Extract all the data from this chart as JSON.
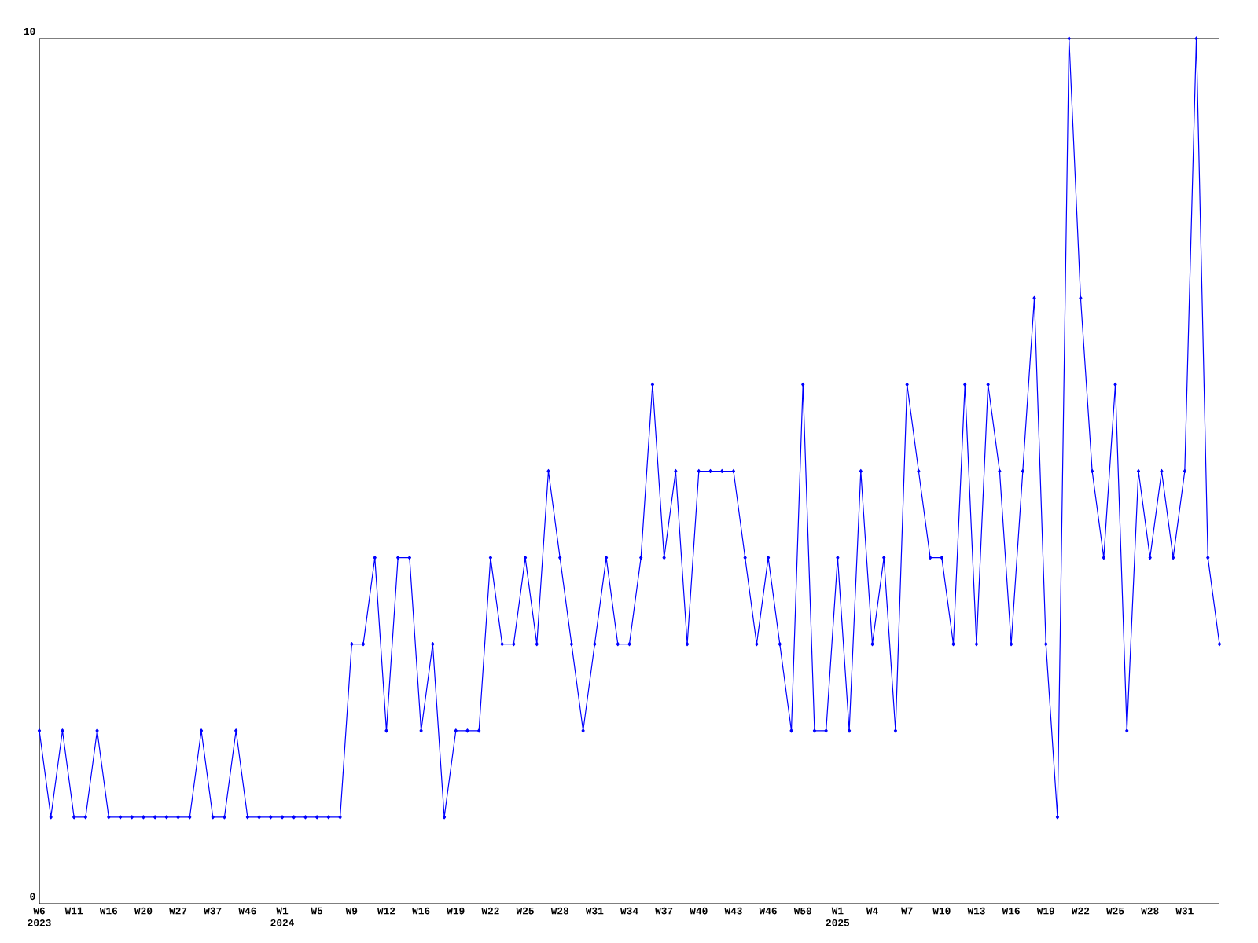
{
  "chart_data": {
    "type": "line",
    "categories": [
      "W6 2023",
      null,
      null,
      "W11",
      null,
      null,
      "W16",
      null,
      null,
      "W20",
      null,
      null,
      "W27",
      null,
      null,
      "W37",
      null,
      null,
      "W46",
      null,
      null,
      "W1 2024",
      null,
      null,
      "W5",
      null,
      null,
      "W9",
      null,
      null,
      "W12",
      null,
      null,
      "W16",
      null,
      null,
      "W19",
      null,
      null,
      "W22",
      null,
      null,
      "W25",
      null,
      null,
      "W28",
      null,
      null,
      "W31",
      null,
      null,
      "W34",
      null,
      null,
      "W37",
      null,
      null,
      "W40",
      null,
      null,
      "W43",
      null,
      null,
      "W46",
      null,
      null,
      "W50",
      null,
      null,
      "W1 2025",
      null,
      null,
      "W4",
      null,
      null,
      "W7",
      null,
      null,
      "W10",
      null,
      null,
      "W13",
      null,
      null,
      "W16",
      null,
      null,
      "W19",
      null,
      null,
      "W22",
      null,
      null,
      "W25",
      null,
      null,
      "W28",
      null,
      null,
      "W31",
      null,
      null,
      null
    ],
    "series": [
      {
        "color": "#0000ff",
        "values": [
          2,
          1,
          2,
          1,
          1,
          2,
          1,
          1,
          1,
          1,
          1,
          1,
          1,
          1,
          2,
          1,
          1,
          2,
          1,
          1,
          1,
          1,
          1,
          1,
          1,
          1,
          1,
          3,
          3,
          4,
          2,
          4,
          4,
          2,
          3,
          1,
          2,
          2,
          2,
          4,
          3,
          3,
          4,
          3,
          5,
          4,
          3,
          2,
          3,
          4,
          3,
          3,
          4,
          6,
          4,
          5,
          3,
          5,
          5,
          5,
          5,
          4,
          3,
          4,
          3,
          2,
          6,
          2,
          2,
          4,
          2,
          5,
          3,
          4,
          2,
          6,
          5,
          4,
          4,
          3,
          6,
          3,
          6,
          5,
          3,
          5,
          7,
          3,
          1,
          10,
          7,
          5,
          4,
          6,
          2,
          5,
          4,
          5,
          4,
          5,
          10,
          4,
          3
        ]
      }
    ],
    "ylim": [
      0,
      10
    ],
    "yticks": [
      0,
      10
    ],
    "marker": "diamond",
    "line_style": "solid"
  }
}
